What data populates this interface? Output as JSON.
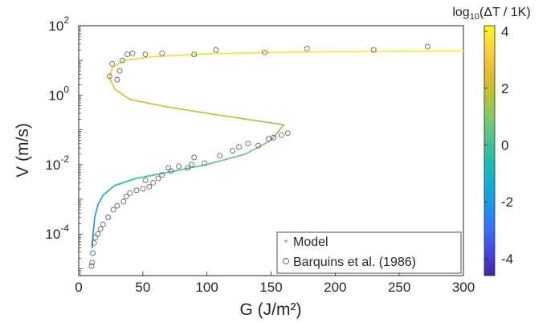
{
  "chart_data": {
    "type": "scatter",
    "xlabel": "G (J/m²)",
    "ylabel": "V (m/s)",
    "xlim": [
      0,
      300
    ],
    "ylim_log10": [
      -5.2,
      2
    ],
    "y_scale": "log",
    "x_ticks": [
      "0",
      "50",
      "100",
      "150",
      "200",
      "250",
      "300"
    ],
    "y_ticks": [
      {
        "value": 100,
        "base": "10",
        "exp": "2"
      },
      {
        "value": 1,
        "base": "10",
        "exp": "0"
      },
      {
        "value": 0.01,
        "base": "10",
        "exp": "-2"
      },
      {
        "value": 0.0001,
        "base": "10",
        "exp": "-4"
      }
    ],
    "grid": false,
    "legend": {
      "placement": "bottom-right",
      "entries": [
        {
          "label": "Model",
          "marker": "dot",
          "color": "#f4a13a"
        },
        {
          "label": "Barquins et al. (1986)",
          "marker": "open-circle",
          "color": "#555555"
        }
      ]
    },
    "colorbar": {
      "title_prefix": "log",
      "title_sub": "10",
      "title_rest": "(ΔT / 1K)",
      "range": [
        -4.6,
        4.2
      ],
      "ticks": [
        "4",
        "2",
        "0",
        "-2",
        "-4"
      ],
      "colormap": [
        "#3e26a8",
        "#4743e0",
        "#3a6efd",
        "#1b95ec",
        "#0bafd3",
        "#1bbeb2",
        "#49c58e",
        "#83ca64",
        "#bbc42d",
        "#e9bb2c",
        "#fed136",
        "#f9fb15"
      ]
    },
    "series": [
      {
        "name": "Model",
        "kind": "line",
        "points": [
          {
            "G": 10.5,
            "V": 4e-05,
            "c": -2.6
          },
          {
            "G": 11.2,
            "V": 0.0001,
            "c": -2.3
          },
          {
            "G": 12.5,
            "V": 0.0003,
            "c": -1.9
          },
          {
            "G": 15,
            "V": 0.0007,
            "c": -1.5
          },
          {
            "G": 19,
            "V": 0.0013,
            "c": -1.2
          },
          {
            "G": 28,
            "V": 0.0025,
            "c": -0.9
          },
          {
            "G": 45,
            "V": 0.004,
            "c": -0.5
          },
          {
            "G": 70,
            "V": 0.006,
            "c": -0.2
          },
          {
            "G": 100,
            "V": 0.01,
            "c": 0.2
          },
          {
            "G": 130,
            "V": 0.02,
            "c": 0.6
          },
          {
            "G": 150,
            "V": 0.05,
            "c": 1.0
          },
          {
            "G": 160,
            "V": 0.14,
            "c": 1.3
          },
          {
            "G": 140,
            "V": 0.18,
            "c": 1.5
          },
          {
            "G": 100,
            "V": 0.3,
            "c": 1.8
          },
          {
            "G": 70,
            "V": 0.45,
            "c": 2.0
          },
          {
            "G": 40,
            "V": 0.75,
            "c": 2.3
          },
          {
            "G": 28,
            "V": 1.5,
            "c": 2.6
          },
          {
            "G": 24,
            "V": 3.2,
            "c": 2.9
          },
          {
            "G": 26,
            "V": 6,
            "c": 3.1
          },
          {
            "G": 35,
            "V": 10,
            "c": 3.3
          },
          {
            "G": 60,
            "V": 13,
            "c": 3.5
          },
          {
            "G": 100,
            "V": 15.5,
            "c": 3.7
          },
          {
            "G": 150,
            "V": 17,
            "c": 3.8
          },
          {
            "G": 200,
            "V": 17.8,
            "c": 3.9
          },
          {
            "G": 250,
            "V": 18.3,
            "c": 4.0
          },
          {
            "G": 300,
            "V": 18.7,
            "c": 4.0
          }
        ]
      },
      {
        "name": "Barquins et al. (1986)",
        "kind": "scatter",
        "points": [
          {
            "G": 10,
            "V": 1.2e-05
          },
          {
            "G": 10.5,
            "V": 1.5e-05
          },
          {
            "G": 11,
            "V": 2.8e-05
          },
          {
            "G": 12,
            "V": 5.5e-05
          },
          {
            "G": 13,
            "V": 8e-05
          },
          {
            "G": 15,
            "V": 0.0001
          },
          {
            "G": 17,
            "V": 0.00014
          },
          {
            "G": 19,
            "V": 0.00019
          },
          {
            "G": 23,
            "V": 0.0003
          },
          {
            "G": 27,
            "V": 0.0005
          },
          {
            "G": 30,
            "V": 0.00065
          },
          {
            "G": 35,
            "V": 0.00085
          },
          {
            "G": 37,
            "V": 0.0012
          },
          {
            "G": 40,
            "V": 0.0015
          },
          {
            "G": 45,
            "V": 0.0018
          },
          {
            "G": 50,
            "V": 0.002
          },
          {
            "G": 52,
            "V": 0.0035
          },
          {
            "G": 55,
            "V": 0.0023
          },
          {
            "G": 58,
            "V": 0.003
          },
          {
            "G": 62,
            "V": 0.004
          },
          {
            "G": 65,
            "V": 0.005
          },
          {
            "G": 70,
            "V": 0.008
          },
          {
            "G": 72,
            "V": 0.0065
          },
          {
            "G": 78,
            "V": 0.009
          },
          {
            "G": 85,
            "V": 0.008
          },
          {
            "G": 88,
            "V": 0.01
          },
          {
            "G": 90,
            "V": 0.016
          },
          {
            "G": 98,
            "V": 0.011
          },
          {
            "G": 110,
            "V": 0.018
          },
          {
            "G": 120,
            "V": 0.025
          },
          {
            "G": 125,
            "V": 0.032
          },
          {
            "G": 132,
            "V": 0.04
          },
          {
            "G": 140,
            "V": 0.035
          },
          {
            "G": 148,
            "V": 0.055
          },
          {
            "G": 152,
            "V": 0.06
          },
          {
            "G": 158,
            "V": 0.07
          },
          {
            "G": 163,
            "V": 0.08
          },
          {
            "G": 24,
            "V": 3.5
          },
          {
            "G": 26,
            "V": 8
          },
          {
            "G": 30,
            "V": 2.8
          },
          {
            "G": 32,
            "V": 5
          },
          {
            "G": 34,
            "V": 10
          },
          {
            "G": 38,
            "V": 15
          },
          {
            "G": 42,
            "V": 16
          },
          {
            "G": 52,
            "V": 15
          },
          {
            "G": 65,
            "V": 16
          },
          {
            "G": 90,
            "V": 15
          },
          {
            "G": 107,
            "V": 20
          },
          {
            "G": 145,
            "V": 17
          },
          {
            "G": 178,
            "V": 22
          },
          {
            "G": 230,
            "V": 20
          },
          {
            "G": 272,
            "V": 25
          }
        ]
      }
    ]
  }
}
